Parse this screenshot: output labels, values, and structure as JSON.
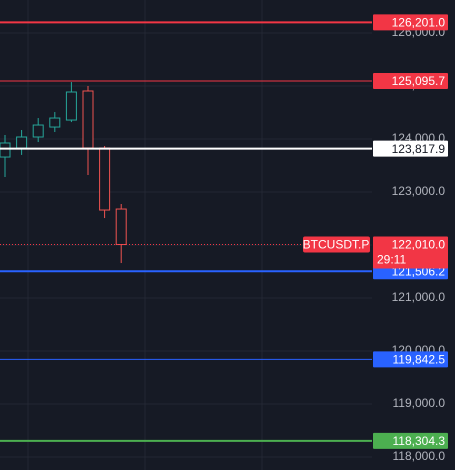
{
  "chart_data": {
    "type": "candlestick",
    "ylim": [
      117755,
      126623
    ],
    "yticks": [
      {
        "value": 118000,
        "label": "118,000.0"
      },
      {
        "value": 119000,
        "label": "119,000.0"
      },
      {
        "value": 120000,
        "label": "120,000.0"
      },
      {
        "value": 121000,
        "label": "121,000.0"
      },
      {
        "value": 122000,
        "label": "122,000.0"
      },
      {
        "value": 123000,
        "label": "123,000.0"
      },
      {
        "value": 124000,
        "label": "124,000.0"
      },
      {
        "value": 125000,
        "label": "125,000.0"
      },
      {
        "value": 126000,
        "label": "126,000.0"
      }
    ],
    "grid": true,
    "up_color": "#26a69a",
    "down_color": "#ef5350",
    "open": [
      123660,
      123830,
      124038,
      124226,
      124358,
      124906,
      123830,
      122679
    ],
    "high": [
      124075,
      124170,
      124396,
      124509,
      125075,
      125000,
      123868,
      122774
    ],
    "low": [
      123283,
      123700,
      123943,
      124132,
      124320,
      123321,
      122509,
      121660
    ],
    "close": [
      123925,
      124038,
      124264,
      124396,
      124887,
      123830,
      122660,
      122010
    ],
    "levels": {
      "values": [
        126201.0,
        125095.7,
        123817.9,
        121506.2,
        119842.5,
        118304.3
      ],
      "value_labels": [
        "126,201.0",
        "125,095.7",
        "123,817.9",
        "121,506.2",
        "119,842.5",
        "118,304.3"
      ],
      "colors": [
        "#f23645",
        "#f23645",
        "#ffffff",
        "#2962ff",
        "#2962ff",
        "#4caf50"
      ]
    },
    "last_price": {
      "symbol": "BTCUSDT.P",
      "value": 122010.0,
      "value_label": "122,010.0",
      "countdown": "29:11",
      "color": "#f23645"
    }
  }
}
